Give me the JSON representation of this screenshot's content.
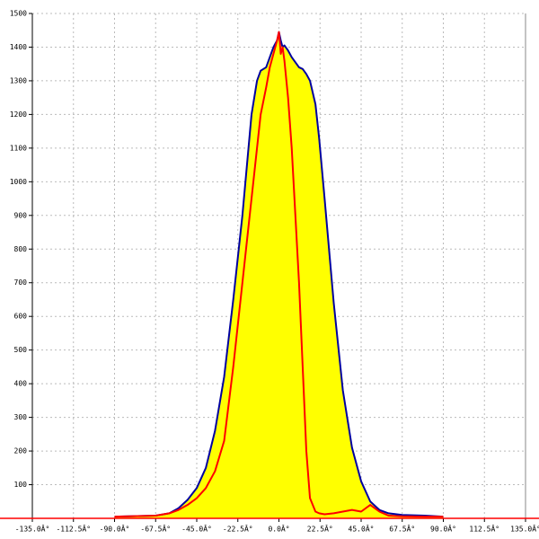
{
  "chart_data": {
    "type": "area",
    "x": [
      -90,
      -67.5,
      -60,
      -55,
      -50,
      -45,
      -40,
      -35,
      -30,
      -25,
      -20,
      -15,
      -12,
      -10,
      -7,
      -5,
      -3,
      -1,
      0,
      1,
      2,
      3,
      5,
      7,
      9,
      11,
      13,
      15,
      17,
      20,
      22,
      25,
      30,
      35,
      40,
      45,
      50,
      55,
      60,
      67.5,
      80,
      90
    ],
    "series": [
      {
        "color": "#0000a0",
        "fill": "#ffff00",
        "values": [
          5,
          8,
          15,
          30,
          55,
          90,
          150,
          260,
          420,
          650,
          900,
          1200,
          1300,
          1330,
          1340,
          1370,
          1400,
          1420,
          1445,
          1420,
          1400,
          1405,
          1390,
          1370,
          1355,
          1340,
          1335,
          1320,
          1300,
          1230,
          1130,
          950,
          640,
          380,
          210,
          110,
          50,
          25,
          15,
          10,
          8,
          5
        ]
      },
      {
        "color": "#ff0000",
        "values": [
          5,
          8,
          15,
          25,
          40,
          60,
          90,
          140,
          230,
          450,
          700,
          950,
          1100,
          1200,
          1280,
          1340,
          1380,
          1420,
          1445,
          1380,
          1400,
          1360,
          1250,
          1100,
          900,
          700,
          450,
          200,
          60,
          20,
          15,
          12,
          15,
          20,
          25,
          20,
          40,
          20,
          8,
          6,
          5,
          5
        ]
      }
    ],
    "xlim": [
      -135,
      135
    ],
    "xticks": [
      {
        "value": -135,
        "label": "-135.0Â°"
      },
      {
        "value": -112.5,
        "label": "-112.5Â°"
      },
      {
        "value": -90,
        "label": "-90.0Â°"
      },
      {
        "value": -67.5,
        "label": "-67.5Â°"
      },
      {
        "value": -45,
        "label": "-45.0Â°"
      },
      {
        "value": -22.5,
        "label": "-22.5Â°"
      },
      {
        "value": 0,
        "label": "0.0Â°"
      },
      {
        "value": 22.5,
        "label": "22.5Â°"
      },
      {
        "value": 45,
        "label": "45.0Â°"
      },
      {
        "value": 67.5,
        "label": "67.5Â°"
      },
      {
        "value": 90,
        "label": "90.0Â°"
      },
      {
        "value": 112.5,
        "label": "112.5Â°"
      },
      {
        "value": 135,
        "label": "135.0Â°"
      }
    ],
    "ylim": [
      0,
      1500
    ],
    "yticks": [
      100,
      200,
      300,
      400,
      500,
      600,
      700,
      800,
      900,
      1000,
      1100,
      1200,
      1300,
      1400,
      1500
    ],
    "grid": true
  }
}
